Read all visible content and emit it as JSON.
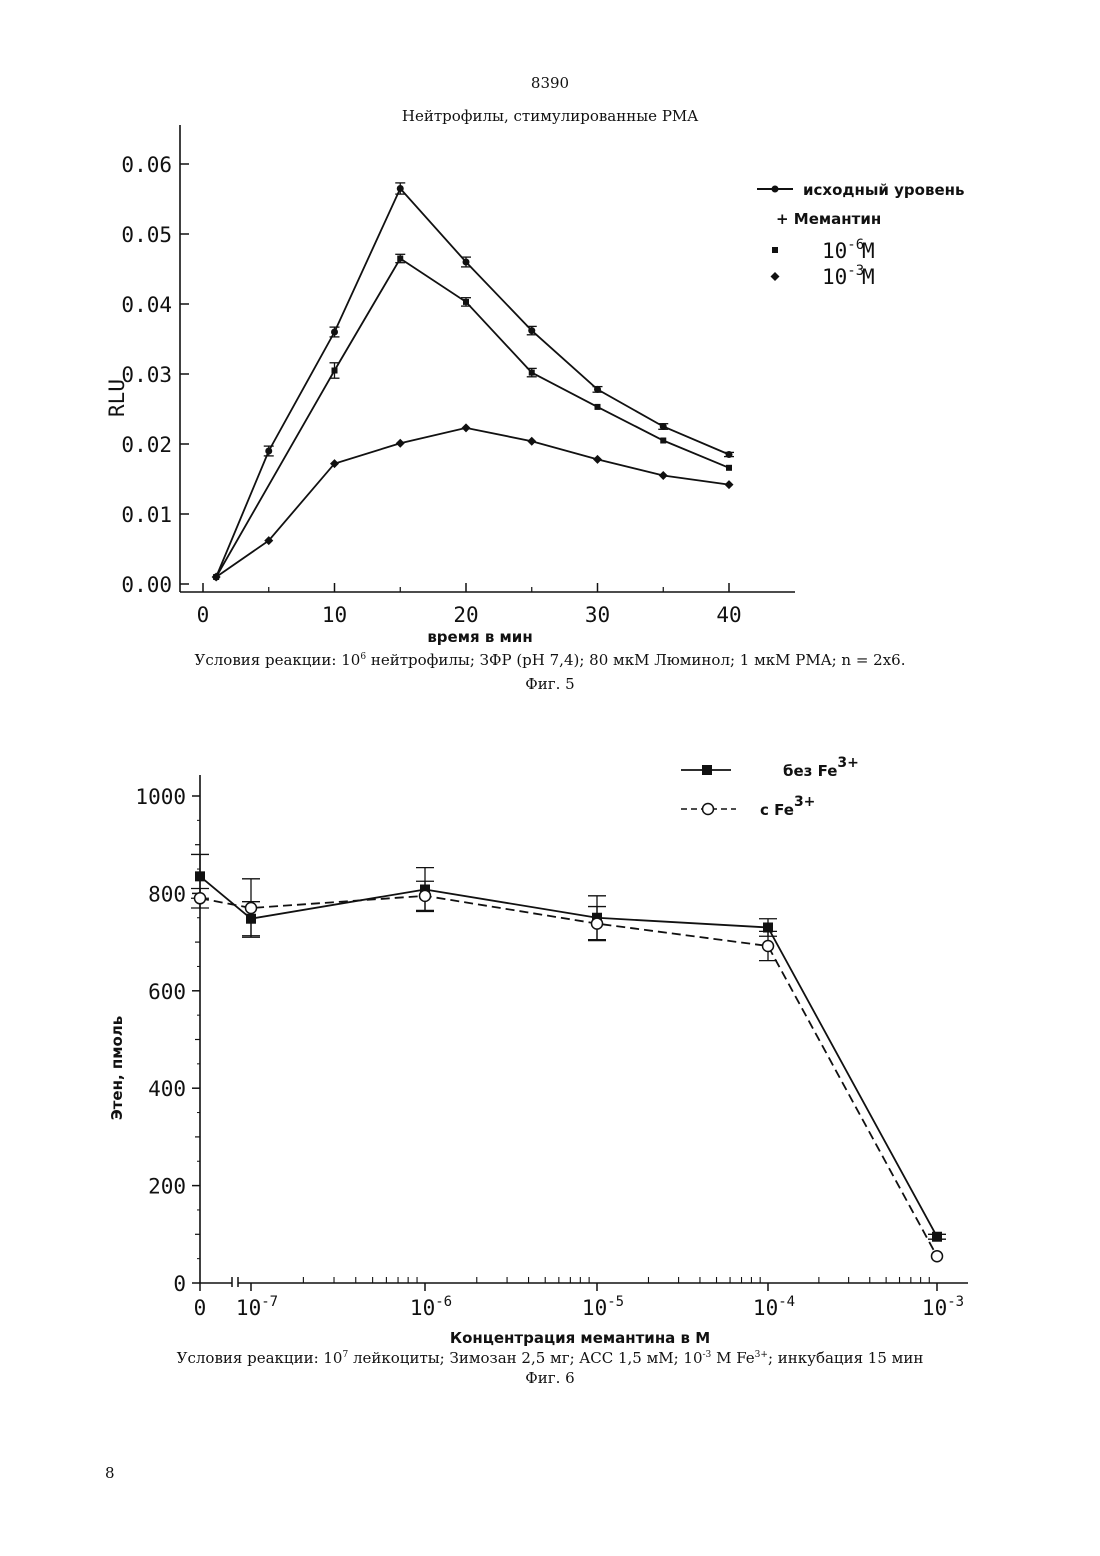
{
  "page": {
    "header_number": "8390",
    "footer_number": "8"
  },
  "figure5": {
    "title": "Нейтрофилы, стимулированные PMA",
    "conditions_prefix": "Условия реакции: 10",
    "conditions_sup": "6",
    "conditions_rest": " нейтрофилы; ЗФР (pH 7,4); 80 мкМ Люминол; 1 мкМ PMA; n = 2x6.",
    "caption": "Фиг. 5",
    "legend": {
      "baseline": "исходный уровень",
      "header": "+ Мемантин",
      "dose1_base": "10",
      "dose1_exp": "-6",
      "dose1_unit": "M",
      "dose2_base": "10",
      "dose2_exp": "-3",
      "dose2_unit": "M"
    }
  },
  "figure6": {
    "conditions_prefix": "Условия реакции: 10",
    "conditions_sup1": "7",
    "conditions_mid": " лейкоциты; Зимозан 2,5 мг; ACC 1,5 мМ; 10",
    "conditions_sup2": "-3",
    "conditions_mid2": " M Fe",
    "conditions_sup3": "3+",
    "conditions_end": "; инкубация 15 мин",
    "caption": "Фиг. 6",
    "legend": {
      "without_fe": "без Fe",
      "with_fe": "с Fe",
      "fe_exp": "3+"
    }
  },
  "chart_data": [
    {
      "type": "line",
      "xlabel": "время в мин",
      "ylabel": "RLU",
      "xlim": [
        -1,
        45
      ],
      "ylim": [
        0,
        0.065
      ],
      "xticks": [
        0,
        10,
        20,
        30,
        40
      ],
      "xtick_labels": [
        "0",
        "10",
        "20",
        "30",
        "40"
      ],
      "yticks": [
        0,
        0.01,
        0.02,
        0.03,
        0.04,
        0.05,
        0.06
      ],
      "ytick_labels": [
        "0.00",
        "0.01",
        "0.02",
        "0.03",
        "0.04",
        "0.05",
        "0.06"
      ],
      "legend_position": "top-right",
      "series": [
        {
          "marker": "circle-errbar",
          "x": [
            1,
            5,
            10,
            15,
            20,
            25,
            30,
            35,
            40
          ],
          "y": [
            0.001,
            0.019,
            0.036,
            0.0565,
            0.046,
            0.0362,
            0.0278,
            0.0225,
            0.0185
          ],
          "err": [
            0,
            0.0007,
            0.0007,
            0.0008,
            0.0007,
            0.0006,
            0.0004,
            0.0004,
            0.0003
          ]
        },
        {
          "marker": "small-square",
          "x": [
            1,
            10,
            15,
            20,
            25,
            30,
            35,
            40
          ],
          "y": [
            0.001,
            0.0305,
            0.0465,
            0.0403,
            0.0302,
            0.0253,
            0.0205,
            0.0166
          ],
          "err": [
            0,
            0.0011,
            0.0006,
            0.0006,
            0.0006,
            0,
            0,
            0
          ]
        },
        {
          "marker": "diamond",
          "x": [
            1,
            5,
            10,
            15,
            20,
            25,
            30,
            35,
            40
          ],
          "y": [
            0.001,
            0.0062,
            0.0172,
            0.0201,
            0.0223,
            0.0204,
            0.0178,
            0.0155,
            0.0142
          ],
          "err": [
            0,
            0,
            0,
            0,
            0,
            0,
            0,
            0,
            0
          ]
        }
      ]
    },
    {
      "type": "line",
      "xlabel": "Концентрация мемантина в М",
      "ylabel": "Этен, пмоль",
      "x_scale": "log-with-zero",
      "x_categories": [
        "0",
        "1e-7",
        "1e-6",
        "1e-5",
        "1e-4",
        "1e-3"
      ],
      "xtick_labels": [
        {
          "base": "0",
          "exp": ""
        },
        {
          "base": "10",
          "exp": "-7"
        },
        {
          "base": "10",
          "exp": "-6"
        },
        {
          "base": "10",
          "exp": "-5"
        },
        {
          "base": "10",
          "exp": "-4"
        },
        {
          "base": "10",
          "exp": "-3"
        }
      ],
      "ylim": [
        0,
        1000
      ],
      "yticks": [
        0,
        200,
        400,
        600,
        800,
        1000
      ],
      "ytick_labels": [
        "0",
        "200",
        "400",
        "600",
        "800",
        "1000"
      ],
      "legend_position": "top-right",
      "series": [
        {
          "marker": "filled-square",
          "line": "solid",
          "y": [
            835,
            748,
            808,
            750,
            730,
            95
          ],
          "err": [
            45,
            35,
            45,
            45,
            18,
            5
          ]
        },
        {
          "marker": "open-circle",
          "line": "dashed",
          "y": [
            790,
            770,
            795,
            738,
            692,
            55
          ],
          "err": [
            20,
            60,
            30,
            35,
            30,
            0
          ]
        }
      ]
    }
  ]
}
